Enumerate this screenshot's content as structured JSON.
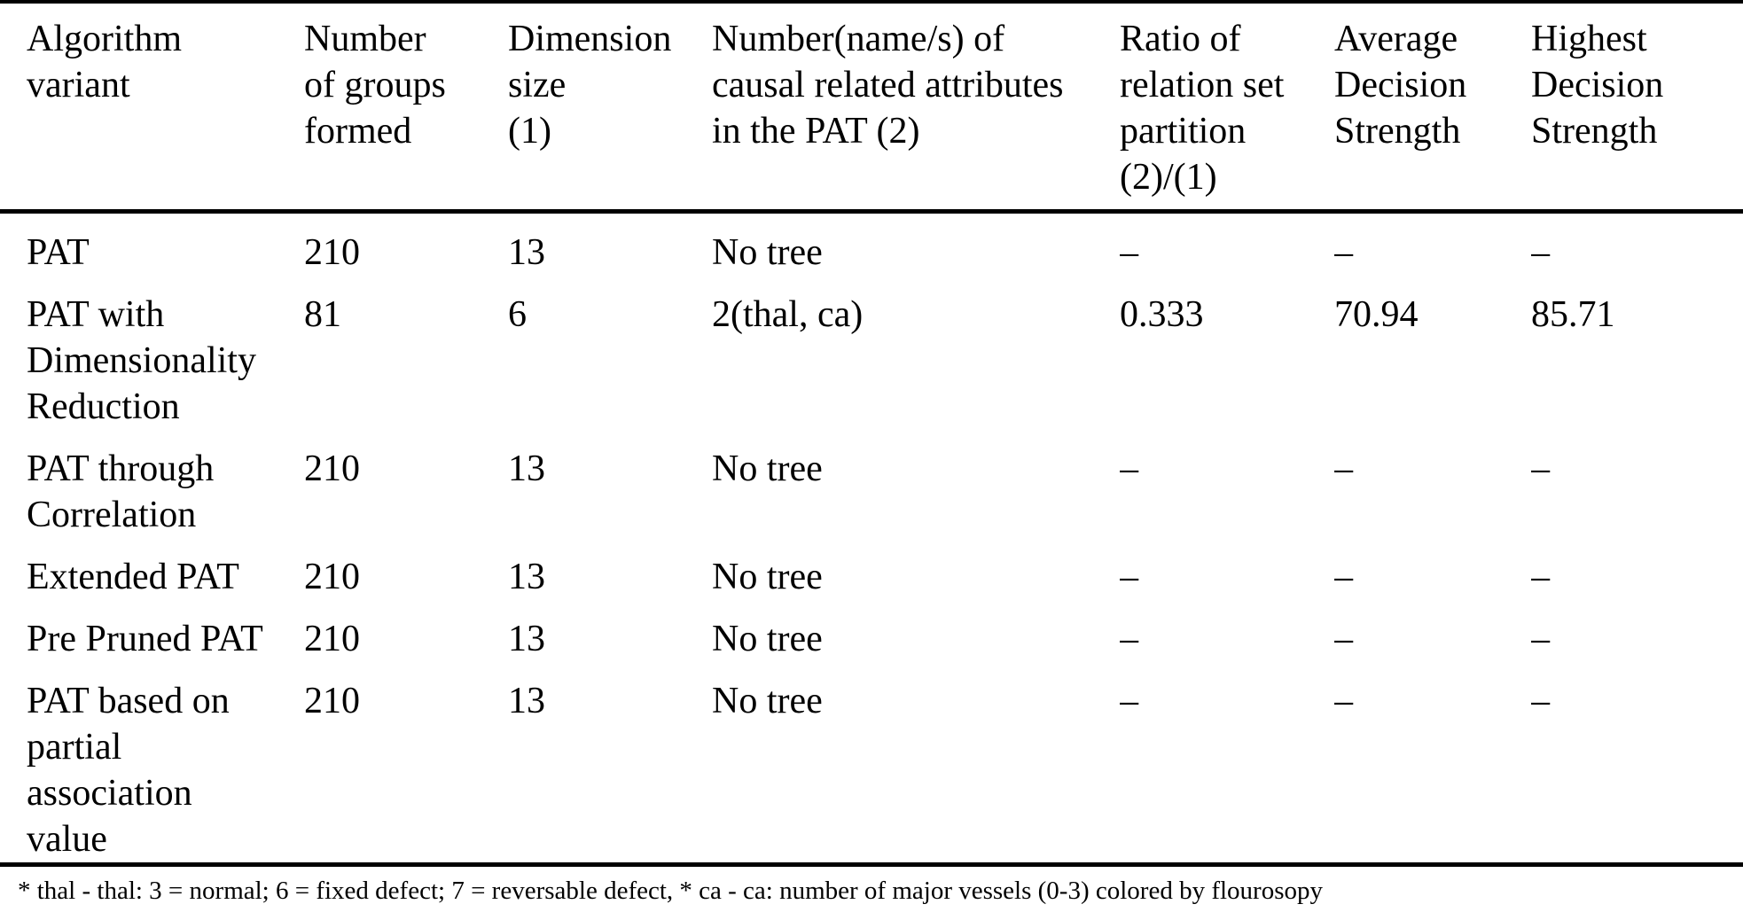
{
  "colors": {
    "background": "#ffffff",
    "text": "#000000",
    "rule": "#000000"
  },
  "table": {
    "columns": [
      {
        "label": "Algorithm\nvariant"
      },
      {
        "label": "Number\nof groups\nformed"
      },
      {
        "label": "Dimension\nsize\n(1)"
      },
      {
        "label": "Number(name/s) of\ncausal related attributes\nin the PAT (2)"
      },
      {
        "label": "Ratio of\nrelation set\npartition\n(2)/(1)"
      },
      {
        "label": "Average\nDecision\nStrength"
      },
      {
        "label": "Highest\nDecision\nStrength"
      }
    ],
    "rows": [
      [
        "PAT",
        "210",
        "13",
        "No tree",
        "–",
        "–",
        "–"
      ],
      [
        "PAT with\nDimensionality\nReduction",
        "81",
        "6",
        "2(thal, ca)",
        "0.333",
        "70.94",
        "85.71"
      ],
      [
        "PAT through\nCorrelation",
        "210",
        "13",
        "No tree",
        "–",
        "–",
        "–"
      ],
      [
        "Extended PAT",
        "210",
        "13",
        "No tree",
        "–",
        "–",
        "–"
      ],
      [
        "Pre Pruned PAT",
        "210",
        "13",
        "No tree",
        "–",
        "–",
        "–"
      ],
      [
        "PAT based on\npartial\nassociation\nvalue",
        "210",
        "13",
        "No tree",
        "–",
        "–",
        "–"
      ]
    ],
    "footnote": "* thal - thal: 3 = normal; 6 = fixed defect; 7 = reversable defect, * ca - ca: number of major vessels (0-3) colored by flourosopy"
  }
}
